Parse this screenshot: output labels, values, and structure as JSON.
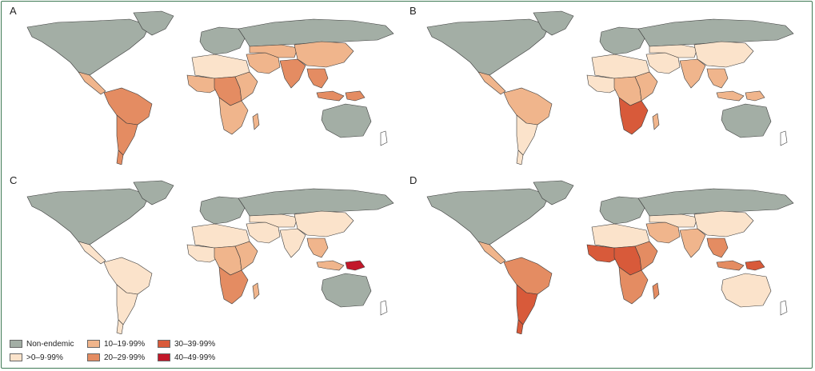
{
  "panels": [
    {
      "letter": "A",
      "colors": {
        "na": "non",
        "ca": "c10",
        "sa_n": "c20",
        "sa_s": "c20",
        "sa_tip": "c20",
        "eu": "non",
        "nafr": "c0",
        "wafr": "c10",
        "cafr": "c20",
        "eafr": "c10",
        "safr": "c10",
        "me": "c10",
        "ru": "non",
        "ca_asia": "c10",
        "india": "c20",
        "china": "c10",
        "sea": "c20",
        "indo": "c20",
        "png": "c20",
        "aus": "non",
        "madag": "c10"
      }
    },
    {
      "letter": "B",
      "colors": {
        "na": "non",
        "ca": "c10",
        "sa_n": "c10",
        "sa_s": "c0",
        "sa_tip": "c0",
        "eu": "non",
        "nafr": "c0",
        "wafr": "c0",
        "cafr": "c10",
        "eafr": "c10",
        "safr": "c30",
        "me": "c0",
        "ru": "non",
        "ca_asia": "c0",
        "india": "c10",
        "china": "c0",
        "sea": "c10",
        "indo": "c10",
        "png": "c10",
        "aus": "non",
        "madag": "c10"
      }
    },
    {
      "letter": "C",
      "colors": {
        "na": "non",
        "ca": "c0",
        "sa_n": "c0",
        "sa_s": "c0",
        "sa_tip": "c0",
        "eu": "non",
        "nafr": "c0",
        "wafr": "c0",
        "cafr": "c10",
        "eafr": "c10",
        "safr": "c20",
        "me": "c0",
        "ru": "non",
        "ca_asia": "c0",
        "india": "c0",
        "china": "c0",
        "sea": "c10",
        "indo": "c10",
        "png": "c40",
        "aus": "non",
        "madag": "c10"
      }
    },
    {
      "letter": "D",
      "colors": {
        "na": "non",
        "ca": "c10",
        "sa_n": "c20",
        "sa_s": "c30",
        "sa_tip": "c30",
        "eu": "non",
        "nafr": "c0",
        "wafr": "c30",
        "cafr": "c30",
        "eafr": "c20",
        "safr": "c20",
        "me": "c10",
        "ru": "non",
        "ca_asia": "c0",
        "india": "c10",
        "china": "c0",
        "sea": "c20",
        "indo": "c20",
        "png": "c30",
        "aus": "c0",
        "madag": "c20"
      }
    }
  ],
  "palette": {
    "non": "#a3aea5",
    "c0": "#fbe3cb",
    "c10": "#f0b58c",
    "c20": "#e48c62",
    "c30": "#d85a3a",
    "c40": "#c2182a"
  },
  "legend": [
    {
      "key": "non",
      "label": "Non-endemic"
    },
    {
      "key": "c0",
      "label": ">0–9·99%"
    },
    {
      "key": "c10",
      "label": "10–19·99%"
    },
    {
      "key": "c20",
      "label": "20–29·99%"
    },
    {
      "key": "c30",
      "label": "30–39·99%"
    },
    {
      "key": "c40",
      "label": "40–49·99%"
    }
  ]
}
